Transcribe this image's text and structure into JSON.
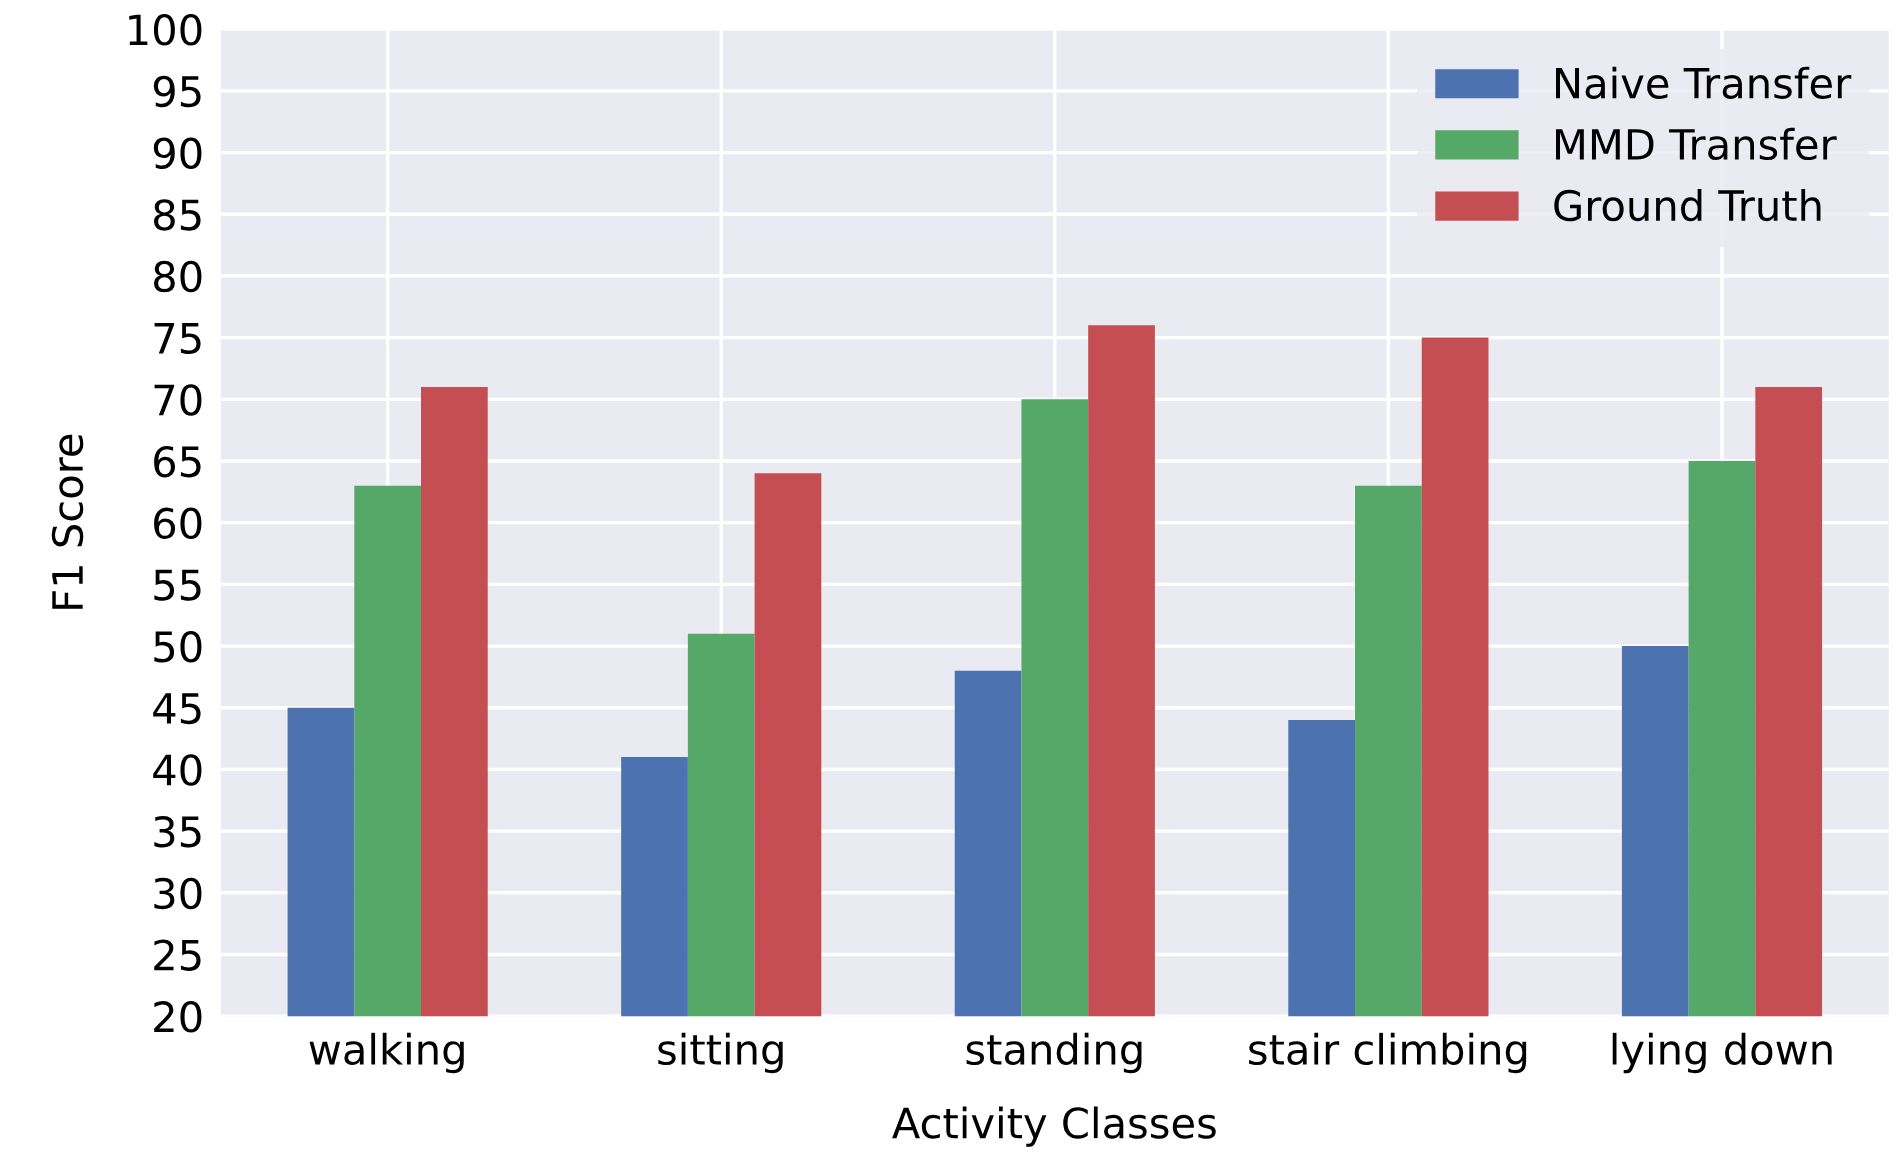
{
  "chart_data": {
    "type": "bar",
    "xlabel": "Activity Classes",
    "ylabel": "F1 Score",
    "categories": [
      "walking",
      "sitting",
      "standing",
      "stair climbing",
      "lying down"
    ],
    "series": [
      {
        "name": "Naive Transfer",
        "color": "#4c72b0",
        "values": [
          45,
          41,
          48,
          44,
          50
        ]
      },
      {
        "name": "MMD Transfer",
        "color": "#55a868",
        "values": [
          63,
          51,
          70,
          63,
          65
        ]
      },
      {
        "name": "Ground Truth",
        "color": "#c44e52",
        "values": [
          71,
          64,
          76,
          75,
          71
        ]
      }
    ],
    "ylim": [
      20,
      100
    ],
    "yticks": [
      20,
      25,
      30,
      35,
      40,
      45,
      50,
      55,
      60,
      65,
      70,
      75,
      80,
      85,
      90,
      95,
      100
    ],
    "grid": true,
    "legend": "top right"
  }
}
